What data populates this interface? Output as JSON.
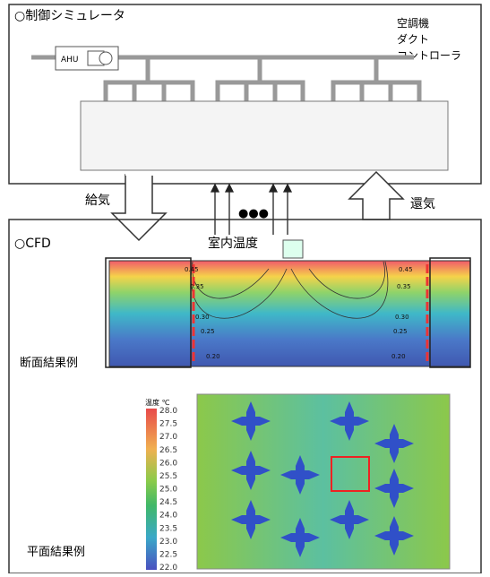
{
  "simulator": {
    "title": "○制御シミュレータ",
    "labels": [
      "空調機",
      "ダクト",
      "コントローラ"
    ],
    "ahu": "AHU"
  },
  "flows": {
    "supply": "給気",
    "return": "還気",
    "dots": "●●●",
    "room_temp": "室内温度"
  },
  "cfd": {
    "title": "○CFD",
    "section_caption": "断面結果例",
    "plan_caption": "平面結果例",
    "contour_labels": [
      "0.45",
      "0.35",
      "0.30",
      "0.25",
      "0.20"
    ],
    "legend_title": "温度 ℃",
    "legend_labels": [
      "28.0",
      "27.5",
      "27.0",
      "26.5",
      "26.0",
      "25.5",
      "25.0",
      "24.5",
      "24.0",
      "23.5",
      "23.0",
      "22.5",
      "22.0"
    ]
  }
}
